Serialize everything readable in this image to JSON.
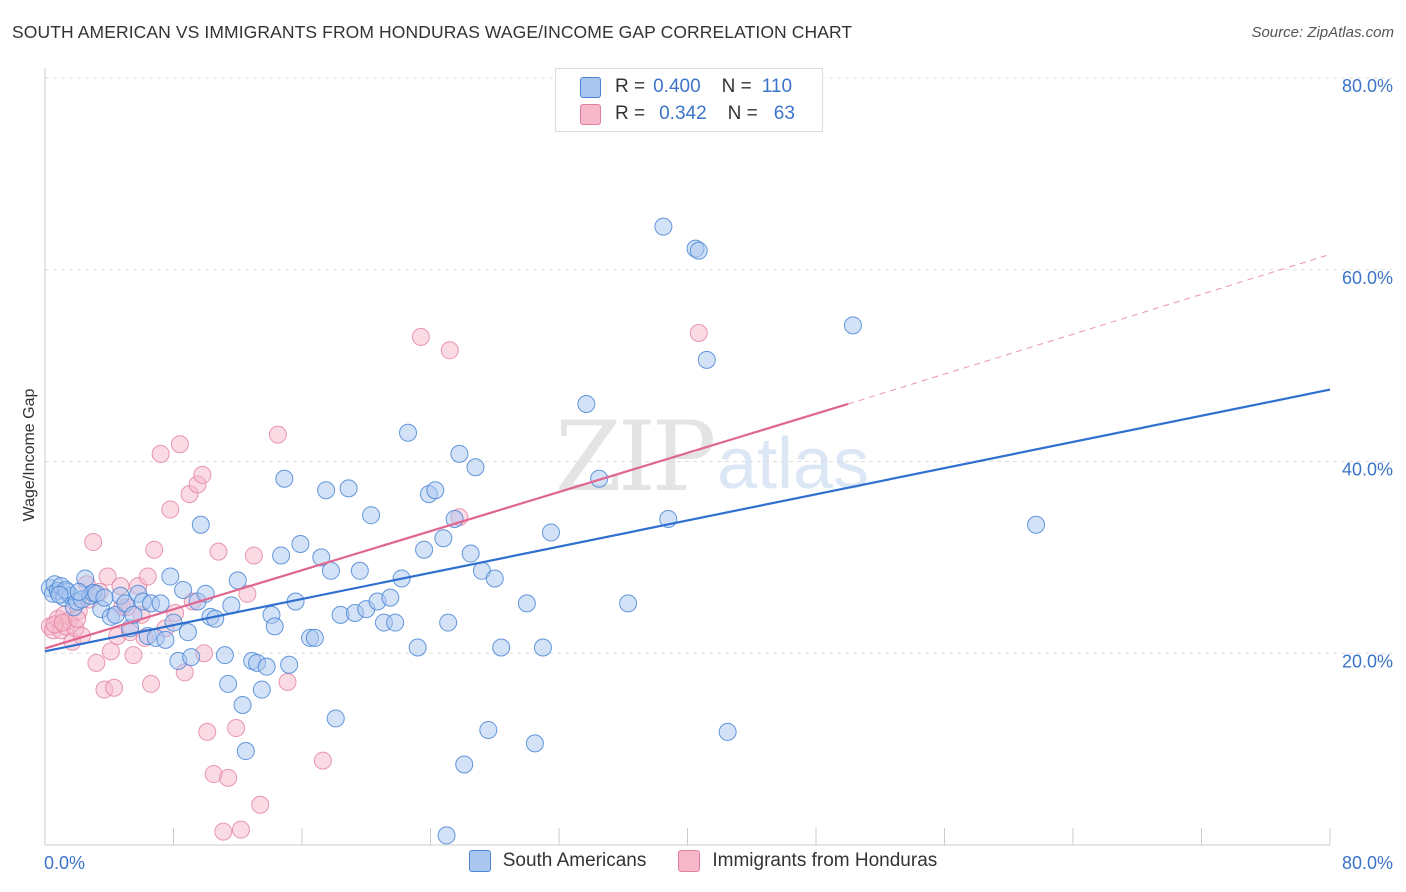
{
  "header": {
    "title": "SOUTH AMERICAN VS IMMIGRANTS FROM HONDURAS WAGE/INCOME GAP CORRELATION CHART",
    "source": "Source: ZipAtlas.com"
  },
  "stats": {
    "row1": {
      "r_label": "R =",
      "r_value": "0.400",
      "n_label": "N =",
      "n_value": "110"
    },
    "row2": {
      "r_label": "R =",
      "r_value": "0.342",
      "n_label": "N =",
      "n_value": "63"
    }
  },
  "legend": {
    "item1": "South Americans",
    "item2": "Immigrants from Honduras"
  },
  "watermark": {
    "zip": "ZIP",
    "atlas": "atlas"
  },
  "colors": {
    "blue_fill": "#a9c6ef",
    "blue_stroke": "#4a86d6",
    "blue_line": "#2f6fcf",
    "pink_fill": "#f6b7c9",
    "pink_stroke": "#e27fa0",
    "pink_line": "#e06690",
    "tick_label": "#3b74c9",
    "grid": "#dddddd"
  },
  "chart_data": {
    "type": "scatter",
    "title": "SOUTH AMERICAN VS IMMIGRANTS FROM HONDURAS WAGE/INCOME GAP CORRELATION CHART",
    "xlabel": "",
    "ylabel": "Wage/Income Gap",
    "xlim": [
      0,
      80
    ],
    "ylim": [
      0,
      80
    ],
    "x_tick_labels": [
      "0.0%",
      "80.0%"
    ],
    "y_ticks": [
      20,
      40,
      60,
      80
    ],
    "y_tick_labels": [
      "20.0%",
      "40.0%",
      "60.0%",
      "80.0%"
    ],
    "grid": "horizontal dashed",
    "legend_position": "bottom",
    "series": [
      {
        "name": "South Americans",
        "r": 0.4,
        "n": 110,
        "trend": {
          "x1": 0,
          "y1": 20.2,
          "x2": 80,
          "y2": 47.5
        },
        "points": [
          [
            0.3,
            26.8
          ],
          [
            0.5,
            26.2
          ],
          [
            0.6,
            27.2
          ],
          [
            0.8,
            26.5
          ],
          [
            1.0,
            27.0
          ],
          [
            1.2,
            25.8
          ],
          [
            1.4,
            26.4
          ],
          [
            1.6,
            26.0
          ],
          [
            1.8,
            24.8
          ],
          [
            2.0,
            25.4
          ],
          [
            2.3,
            25.6
          ],
          [
            2.5,
            27.8
          ],
          [
            2.8,
            26.0
          ],
          [
            3.0,
            26.3
          ],
          [
            3.2,
            26.2
          ],
          [
            3.5,
            24.6
          ],
          [
            4.1,
            23.8
          ],
          [
            4.4,
            24.0
          ],
          [
            4.7,
            26.0
          ],
          [
            5.0,
            25.2
          ],
          [
            5.3,
            22.6
          ],
          [
            5.5,
            24.0
          ],
          [
            5.8,
            26.2
          ],
          [
            6.1,
            25.4
          ],
          [
            6.4,
            21.8
          ],
          [
            6.6,
            25.2
          ],
          [
            6.9,
            21.6
          ],
          [
            7.2,
            25.2
          ],
          [
            7.5,
            21.4
          ],
          [
            7.8,
            28.0
          ],
          [
            8.0,
            23.2
          ],
          [
            8.3,
            19.2
          ],
          [
            8.6,
            26.6
          ],
          [
            8.9,
            22.2
          ],
          [
            9.1,
            19.6
          ],
          [
            9.5,
            25.4
          ],
          [
            9.7,
            33.4
          ],
          [
            10.0,
            26.2
          ],
          [
            10.3,
            23.8
          ],
          [
            10.6,
            23.6
          ],
          [
            11.2,
            19.8
          ],
          [
            11.4,
            16.8
          ],
          [
            11.6,
            25.0
          ],
          [
            12.0,
            27.6
          ],
          [
            12.3,
            14.6
          ],
          [
            12.5,
            9.8
          ],
          [
            12.9,
            19.2
          ],
          [
            13.2,
            19.0
          ],
          [
            13.5,
            16.2
          ],
          [
            13.8,
            18.6
          ],
          [
            14.1,
            24.0
          ],
          [
            14.3,
            22.8
          ],
          [
            14.7,
            30.2
          ],
          [
            14.9,
            38.2
          ],
          [
            15.2,
            18.8
          ],
          [
            15.6,
            25.4
          ],
          [
            15.9,
            31.4
          ],
          [
            16.5,
            21.6
          ],
          [
            16.8,
            21.6
          ],
          [
            17.2,
            30.0
          ],
          [
            17.5,
            37.0
          ],
          [
            17.8,
            28.6
          ],
          [
            18.1,
            13.2
          ],
          [
            18.4,
            24.0
          ],
          [
            18.9,
            37.2
          ],
          [
            19.3,
            24.2
          ],
          [
            19.6,
            28.6
          ],
          [
            20.0,
            24.6
          ],
          [
            20.3,
            34.4
          ],
          [
            20.7,
            25.4
          ],
          [
            21.1,
            23.2
          ],
          [
            21.5,
            25.8
          ],
          [
            21.8,
            23.2
          ],
          [
            22.2,
            27.8
          ],
          [
            22.6,
            43.0
          ],
          [
            23.2,
            20.6
          ],
          [
            23.6,
            30.8
          ],
          [
            23.9,
            36.6
          ],
          [
            24.3,
            37.0
          ],
          [
            24.8,
            32.0
          ],
          [
            25.1,
            23.2
          ],
          [
            25.5,
            34.0
          ],
          [
            25.8,
            40.8
          ],
          [
            26.1,
            8.4
          ],
          [
            26.5,
            30.4
          ],
          [
            26.8,
            39.4
          ],
          [
            27.2,
            28.6
          ],
          [
            27.6,
            12.0
          ],
          [
            28.0,
            27.8
          ],
          [
            28.4,
            20.6
          ],
          [
            30.0,
            25.2
          ],
          [
            30.5,
            10.6
          ],
          [
            31.0,
            20.6
          ],
          [
            31.5,
            32.6
          ],
          [
            33.7,
            46.0
          ],
          [
            34.5,
            38.2
          ],
          [
            36.3,
            25.2
          ],
          [
            38.5,
            64.5
          ],
          [
            38.8,
            34.0
          ],
          [
            40.5,
            62.2
          ],
          [
            40.7,
            62.0
          ],
          [
            41.2,
            50.6
          ],
          [
            42.5,
            11.8
          ],
          [
            50.3,
            54.2
          ],
          [
            61.7,
            33.4
          ],
          [
            25.0,
            1.0
          ],
          [
            1.3,
            26.6
          ],
          [
            2.1,
            26.4
          ],
          [
            0.9,
            26.1
          ],
          [
            3.7,
            25.8
          ]
        ]
      },
      {
        "name": "Immigrants from Honduras",
        "r": 0.342,
        "n": 63,
        "trend": {
          "x1": 0,
          "y1": 20.5,
          "x2": 50,
          "y2": 46.0,
          "dashed_to": {
            "x": 80,
            "y": 61.6
          }
        },
        "points": [
          [
            0.3,
            22.8
          ],
          [
            0.5,
            22.4
          ],
          [
            0.8,
            23.6
          ],
          [
            1.0,
            22.4
          ],
          [
            1.2,
            24.0
          ],
          [
            1.3,
            22.8
          ],
          [
            1.5,
            23.4
          ],
          [
            1.7,
            21.2
          ],
          [
            1.9,
            22.6
          ],
          [
            2.1,
            24.4
          ],
          [
            2.3,
            21.8
          ],
          [
            2.6,
            27.2
          ],
          [
            2.8,
            25.6
          ],
          [
            3.0,
            31.6
          ],
          [
            3.2,
            19.0
          ],
          [
            3.4,
            26.4
          ],
          [
            3.7,
            16.2
          ],
          [
            3.9,
            28.0
          ],
          [
            4.1,
            20.2
          ],
          [
            4.3,
            16.4
          ],
          [
            4.5,
            21.8
          ],
          [
            4.7,
            27.0
          ],
          [
            4.8,
            24.8
          ],
          [
            5.1,
            24.8
          ],
          [
            5.3,
            22.2
          ],
          [
            5.5,
            19.8
          ],
          [
            5.8,
            27.0
          ],
          [
            6.0,
            24.0
          ],
          [
            6.2,
            21.6
          ],
          [
            6.4,
            28.0
          ],
          [
            6.6,
            16.8
          ],
          [
            6.8,
            30.8
          ],
          [
            7.2,
            40.8
          ],
          [
            7.5,
            22.6
          ],
          [
            7.8,
            35.0
          ],
          [
            8.1,
            24.2
          ],
          [
            8.4,
            41.8
          ],
          [
            8.7,
            18.0
          ],
          [
            9.0,
            36.6
          ],
          [
            9.2,
            25.4
          ],
          [
            9.5,
            37.6
          ],
          [
            9.8,
            38.6
          ],
          [
            10.1,
            11.8
          ],
          [
            10.5,
            7.4
          ],
          [
            10.8,
            30.6
          ],
          [
            11.1,
            1.4
          ],
          [
            11.4,
            7.0
          ],
          [
            11.9,
            12.2
          ],
          [
            12.2,
            1.6
          ],
          [
            12.6,
            26.2
          ],
          [
            13.0,
            30.2
          ],
          [
            13.4,
            4.2
          ],
          [
            14.5,
            42.8
          ],
          [
            15.1,
            17.0
          ],
          [
            17.3,
            8.8
          ],
          [
            23.4,
            53.0
          ],
          [
            25.2,
            51.6
          ],
          [
            25.8,
            34.2
          ],
          [
            40.7,
            53.4
          ],
          [
            0.6,
            23.0
          ],
          [
            1.1,
            23.2
          ],
          [
            2.0,
            23.6
          ],
          [
            9.9,
            20.0
          ]
        ]
      }
    ]
  }
}
